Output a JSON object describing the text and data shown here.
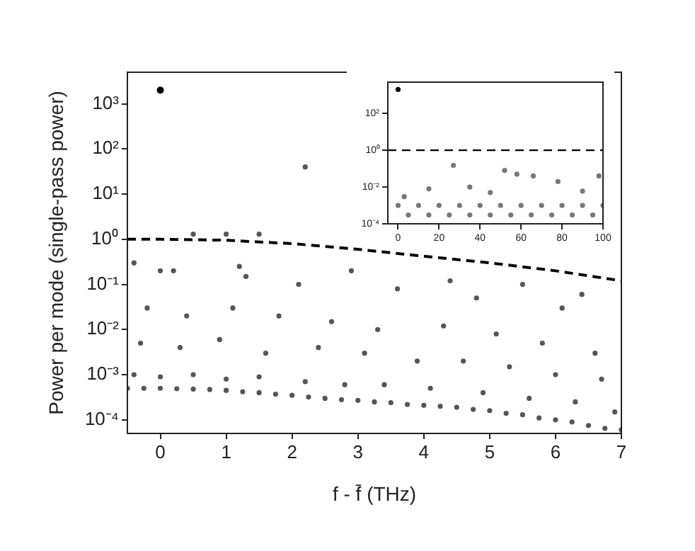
{
  "chart_data": [
    {
      "type": "scatter",
      "xlabel": "f - f̄ (THz)",
      "ylabel": "Power per mode (single-pass power)",
      "xlim": [
        -0.5,
        7
      ],
      "xticks": [
        0,
        1,
        2,
        3,
        4,
        5,
        6,
        7
      ],
      "ylim": [
        5e-05,
        5000
      ],
      "yticks": [
        {
          "value": 0.0001,
          "label": "10⁻⁴"
        },
        {
          "value": 0.001,
          "label": "10⁻³"
        },
        {
          "value": 0.01,
          "label": "10⁻²"
        },
        {
          "value": 0.1,
          "label": "10⁻¹"
        },
        {
          "value": 1,
          "label": "10⁰"
        },
        {
          "value": 10,
          "label": "10¹"
        },
        {
          "value": 100,
          "label": "10²"
        },
        {
          "value": 1000,
          "label": "10³"
        }
      ],
      "log": "y",
      "series": [
        {
          "type": "scatter",
          "marker": "circle",
          "color": "#555555",
          "x": [
            -0.5,
            -0.25,
            0,
            0.25,
            0.5,
            0.75,
            1,
            1.25,
            1.5,
            1.75,
            2,
            2.25,
            2.5,
            2.75,
            3,
            3.25,
            3.5,
            3.75,
            4,
            4.25,
            4.5,
            4.75,
            5,
            5.25,
            5.5,
            5.75,
            6,
            6.25,
            6.5,
            6.75,
            7,
            -0.4,
            0,
            0.5,
            1,
            1.5,
            2.2,
            2.8,
            3.4,
            4.1,
            4.9,
            5.6,
            6.3,
            6.9,
            -0.3,
            0.3,
            0.9,
            1.6,
            2.4,
            3.1,
            3.9,
            4.6,
            5.3,
            6,
            6.7,
            -0.2,
            0.4,
            1.1,
            1.8,
            2.6,
            3.3,
            4.3,
            5.1,
            5.8,
            6.6,
            0.2,
            1.3,
            2.1,
            3.6,
            4.8,
            6.1,
            0.5,
            1,
            1.5,
            2.2,
            -0.4,
            0,
            1.2,
            2.9,
            4.4,
            5.5,
            6.4
          ],
          "values": [
            0.0005,
            0.0005,
            0.0005,
            0.00049,
            0.00048,
            0.00047,
            0.00045,
            0.00042,
            0.0004,
            0.00037,
            0.00035,
            0.00032,
            0.0003,
            0.00028,
            0.00027,
            0.00025,
            0.00024,
            0.00022,
            0.00021,
            0.0002,
            0.00019,
            0.00017,
            0.00016,
            0.00014,
            0.00013,
            0.00011,
            0.0001,
            9e-05,
            7.5e-05,
            6.5e-05,
            6e-05,
            0.001,
            0.0009,
            0.001,
            0.0008,
            0.0009,
            0.0007,
            0.0006,
            0.0006,
            0.0005,
            0.0004,
            0.0003,
            0.00025,
            0.00015,
            0.005,
            0.004,
            0.006,
            0.003,
            0.004,
            0.003,
            0.002,
            0.002,
            0.0015,
            0.001,
            0.0008,
            0.03,
            0.02,
            0.03,
            0.02,
            0.015,
            0.01,
            0.012,
            0.008,
            0.005,
            0.003,
            0.2,
            0.15,
            0.1,
            0.08,
            0.05,
            0.03,
            1.3,
            1.3,
            1.3,
            40,
            0.3,
            0.2,
            0.25,
            0.2,
            0.12,
            0.1,
            0.06
          ]
        },
        {
          "type": "scatter",
          "marker": "circle",
          "color": "#000000",
          "x": [
            0
          ],
          "values": [
            2000
          ]
        },
        {
          "type": "line",
          "marker": "none",
          "line_style": "dashed",
          "color": "#000000",
          "x": [
            -0.5,
            0,
            1,
            2,
            3,
            4,
            5,
            6,
            7
          ],
          "values": [
            1,
            1,
            0.95,
            0.8,
            0.6,
            0.42,
            0.3,
            0.2,
            0.12
          ]
        }
      ]
    },
    {
      "type": "scatter",
      "xlim": [
        -5,
        100
      ],
      "xticks": [
        0,
        20,
        40,
        60,
        80,
        100
      ],
      "ylim": [
        0.0001,
        5000
      ],
      "yticks": [
        {
          "value": 0.0001,
          "label": "10⁻⁴"
        },
        {
          "value": 0.01,
          "label": "10⁻²"
        },
        {
          "value": 1,
          "label": "10⁰"
        },
        {
          "value": 100,
          "label": "10²"
        }
      ],
      "log": "y",
      "ref_lines": [
        {
          "axis": "y",
          "value": 1,
          "line_style": "dashed",
          "color": "#000000"
        }
      ],
      "series": [
        {
          "type": "scatter",
          "marker": "circle",
          "color": "#777777",
          "x": [
            0,
            5,
            10,
            15,
            20,
            25,
            30,
            35,
            40,
            45,
            50,
            55,
            60,
            65,
            70,
            75,
            80,
            85,
            90,
            95,
            100,
            27,
            52,
            58,
            66,
            78,
            15,
            35,
            3,
            45,
            90,
            98
          ],
          "values": [
            0.001,
            0.0003,
            0.001,
            0.0003,
            0.001,
            0.0003,
            0.001,
            0.0003,
            0.001,
            0.0003,
            0.001,
            0.0003,
            0.001,
            0.0003,
            0.001,
            0.0003,
            0.001,
            0.0003,
            0.001,
            0.0003,
            0.001,
            0.15,
            0.08,
            0.05,
            0.04,
            0.02,
            0.008,
            0.01,
            0.003,
            0.005,
            0.006,
            0.04
          ]
        },
        {
          "type": "scatter",
          "marker": "circle",
          "color": "#000000",
          "x": [
            0
          ],
          "values": [
            2000
          ]
        }
      ]
    }
  ]
}
